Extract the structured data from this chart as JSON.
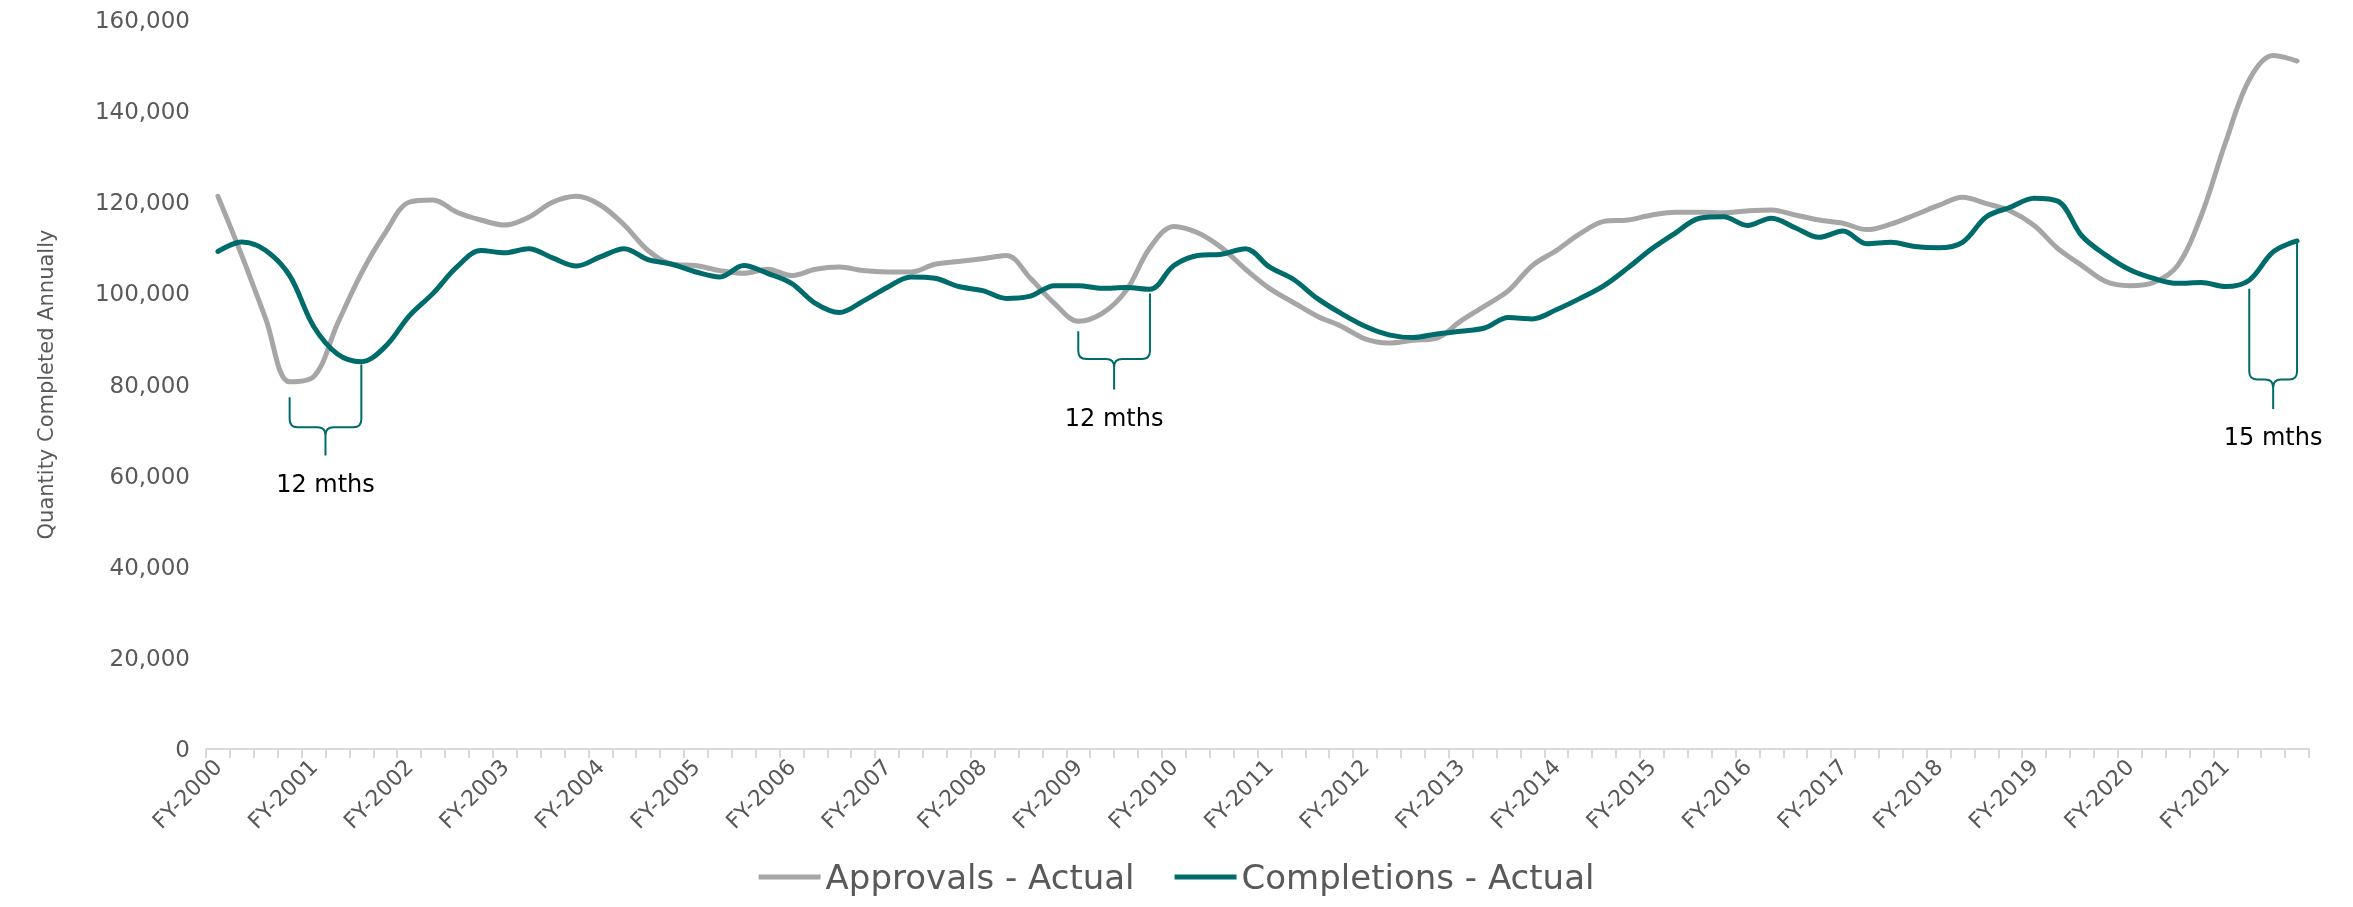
{
  "chart_data": {
    "type": "line",
    "ylabel": "Quantity Completed Annually",
    "categories": [
      "FY-2000",
      null,
      null,
      null,
      "FY-2001",
      null,
      null,
      null,
      "FY-2002",
      null,
      null,
      null,
      "FY-2003",
      null,
      null,
      null,
      "FY-2004",
      null,
      null,
      null,
      "FY-2005",
      null,
      null,
      null,
      "FY-2006",
      null,
      null,
      null,
      "FY-2007",
      null,
      null,
      null,
      "FY-2008",
      null,
      null,
      null,
      "FY-2009",
      null,
      null,
      null,
      "FY-2010",
      null,
      null,
      null,
      "FY-2011",
      null,
      null,
      null,
      "FY-2012",
      null,
      null,
      null,
      "FY-2013",
      null,
      null,
      null,
      "FY-2014",
      null,
      null,
      null,
      "FY-2015",
      null,
      null,
      null,
      "FY-2016",
      null,
      null,
      null,
      "FY-2017",
      null,
      null,
      null,
      "FY-2018",
      null,
      null,
      null,
      "FY-2019",
      null,
      null,
      null,
      "FY-2020",
      null,
      null,
      null,
      "FY-2021",
      null,
      null,
      null
    ],
    "series": [
      {
        "name": "Approvals - Actual",
        "color": "#a6a6a6",
        "values": [
          121300,
          108300,
          94400,
          80600,
          81700,
          93300,
          104400,
          113300,
          120000,
          120500,
          117800,
          116100,
          115000,
          116700,
          120000,
          121300,
          119400,
          115000,
          109400,
          106400,
          106100,
          105000,
          104400,
          105300,
          103900,
          105300,
          105800,
          105000,
          104700,
          104700,
          106400,
          107000,
          107600,
          108300,
          103300,
          97800,
          93900,
          95600,
          100600,
          110000,
          114700,
          113300,
          110000,
          105300,
          101100,
          98000,
          95000,
          92800,
          90000,
          89100,
          89700,
          90200,
          93900,
          97200,
          100600,
          106100,
          109400,
          113100,
          115800,
          116100,
          117200,
          117800,
          117800,
          117700,
          118100,
          118300,
          117200,
          116100,
          115400,
          114000,
          115200,
          117200,
          119300,
          121100,
          119700,
          118100,
          114900,
          109800,
          106100,
          102600,
          101700,
          102400,
          106100,
          117200,
          133000,
          146900,
          152200,
          151000
        ]
      },
      {
        "name": "Completions - Actual",
        "color": "#006b6b",
        "values": [
          109200,
          111300,
          109400,
          103900,
          92800,
          86700,
          85000,
          88300,
          95000,
          100000,
          105800,
          109400,
          108900,
          109800,
          107800,
          106000,
          108000,
          109800,
          107400,
          106400,
          104700,
          103600,
          106100,
          104400,
          102200,
          97800,
          95800,
          98300,
          101300,
          103600,
          103300,
          101500,
          100600,
          98900,
          99400,
          101700,
          101700,
          101100,
          101300,
          100900,
          106100,
          108300,
          108600,
          109800,
          105800,
          103100,
          98900,
          95600,
          92800,
          90900,
          90300,
          91100,
          91700,
          92400,
          94700,
          94400,
          96400,
          98900,
          101700,
          105600,
          109800,
          113300,
          116500,
          116800,
          114900,
          116500,
          114400,
          112300,
          113700,
          110900,
          111200,
          110300,
          110000,
          111200,
          116800,
          118900,
          120900,
          120200,
          112600,
          108400,
          105200,
          103300,
          102200,
          102400,
          101500,
          102900,
          109100,
          111500
        ]
      }
    ],
    "ylim": [
      0,
      160000
    ],
    "yticks": [
      0,
      {
        "value": 20000,
        "label": "20,000"
      },
      {
        "value": 40000,
        "label": "40,000"
      },
      {
        "value": 60000,
        "label": "60,000"
      },
      {
        "value": 80000,
        "label": "80,000"
      },
      {
        "value": 100000,
        "label": "100,000"
      },
      {
        "value": 120000,
        "label": "120,000"
      },
      {
        "value": 140000,
        "label": "140,000"
      },
      {
        "value": 160000,
        "label": "160,000"
      }
    ],
    "grid": false,
    "legend": "bottom",
    "marker": "none",
    "line_style": "solid",
    "annotations": [
      "12 mths",
      "12 mths",
      "15 mths"
    ]
  }
}
